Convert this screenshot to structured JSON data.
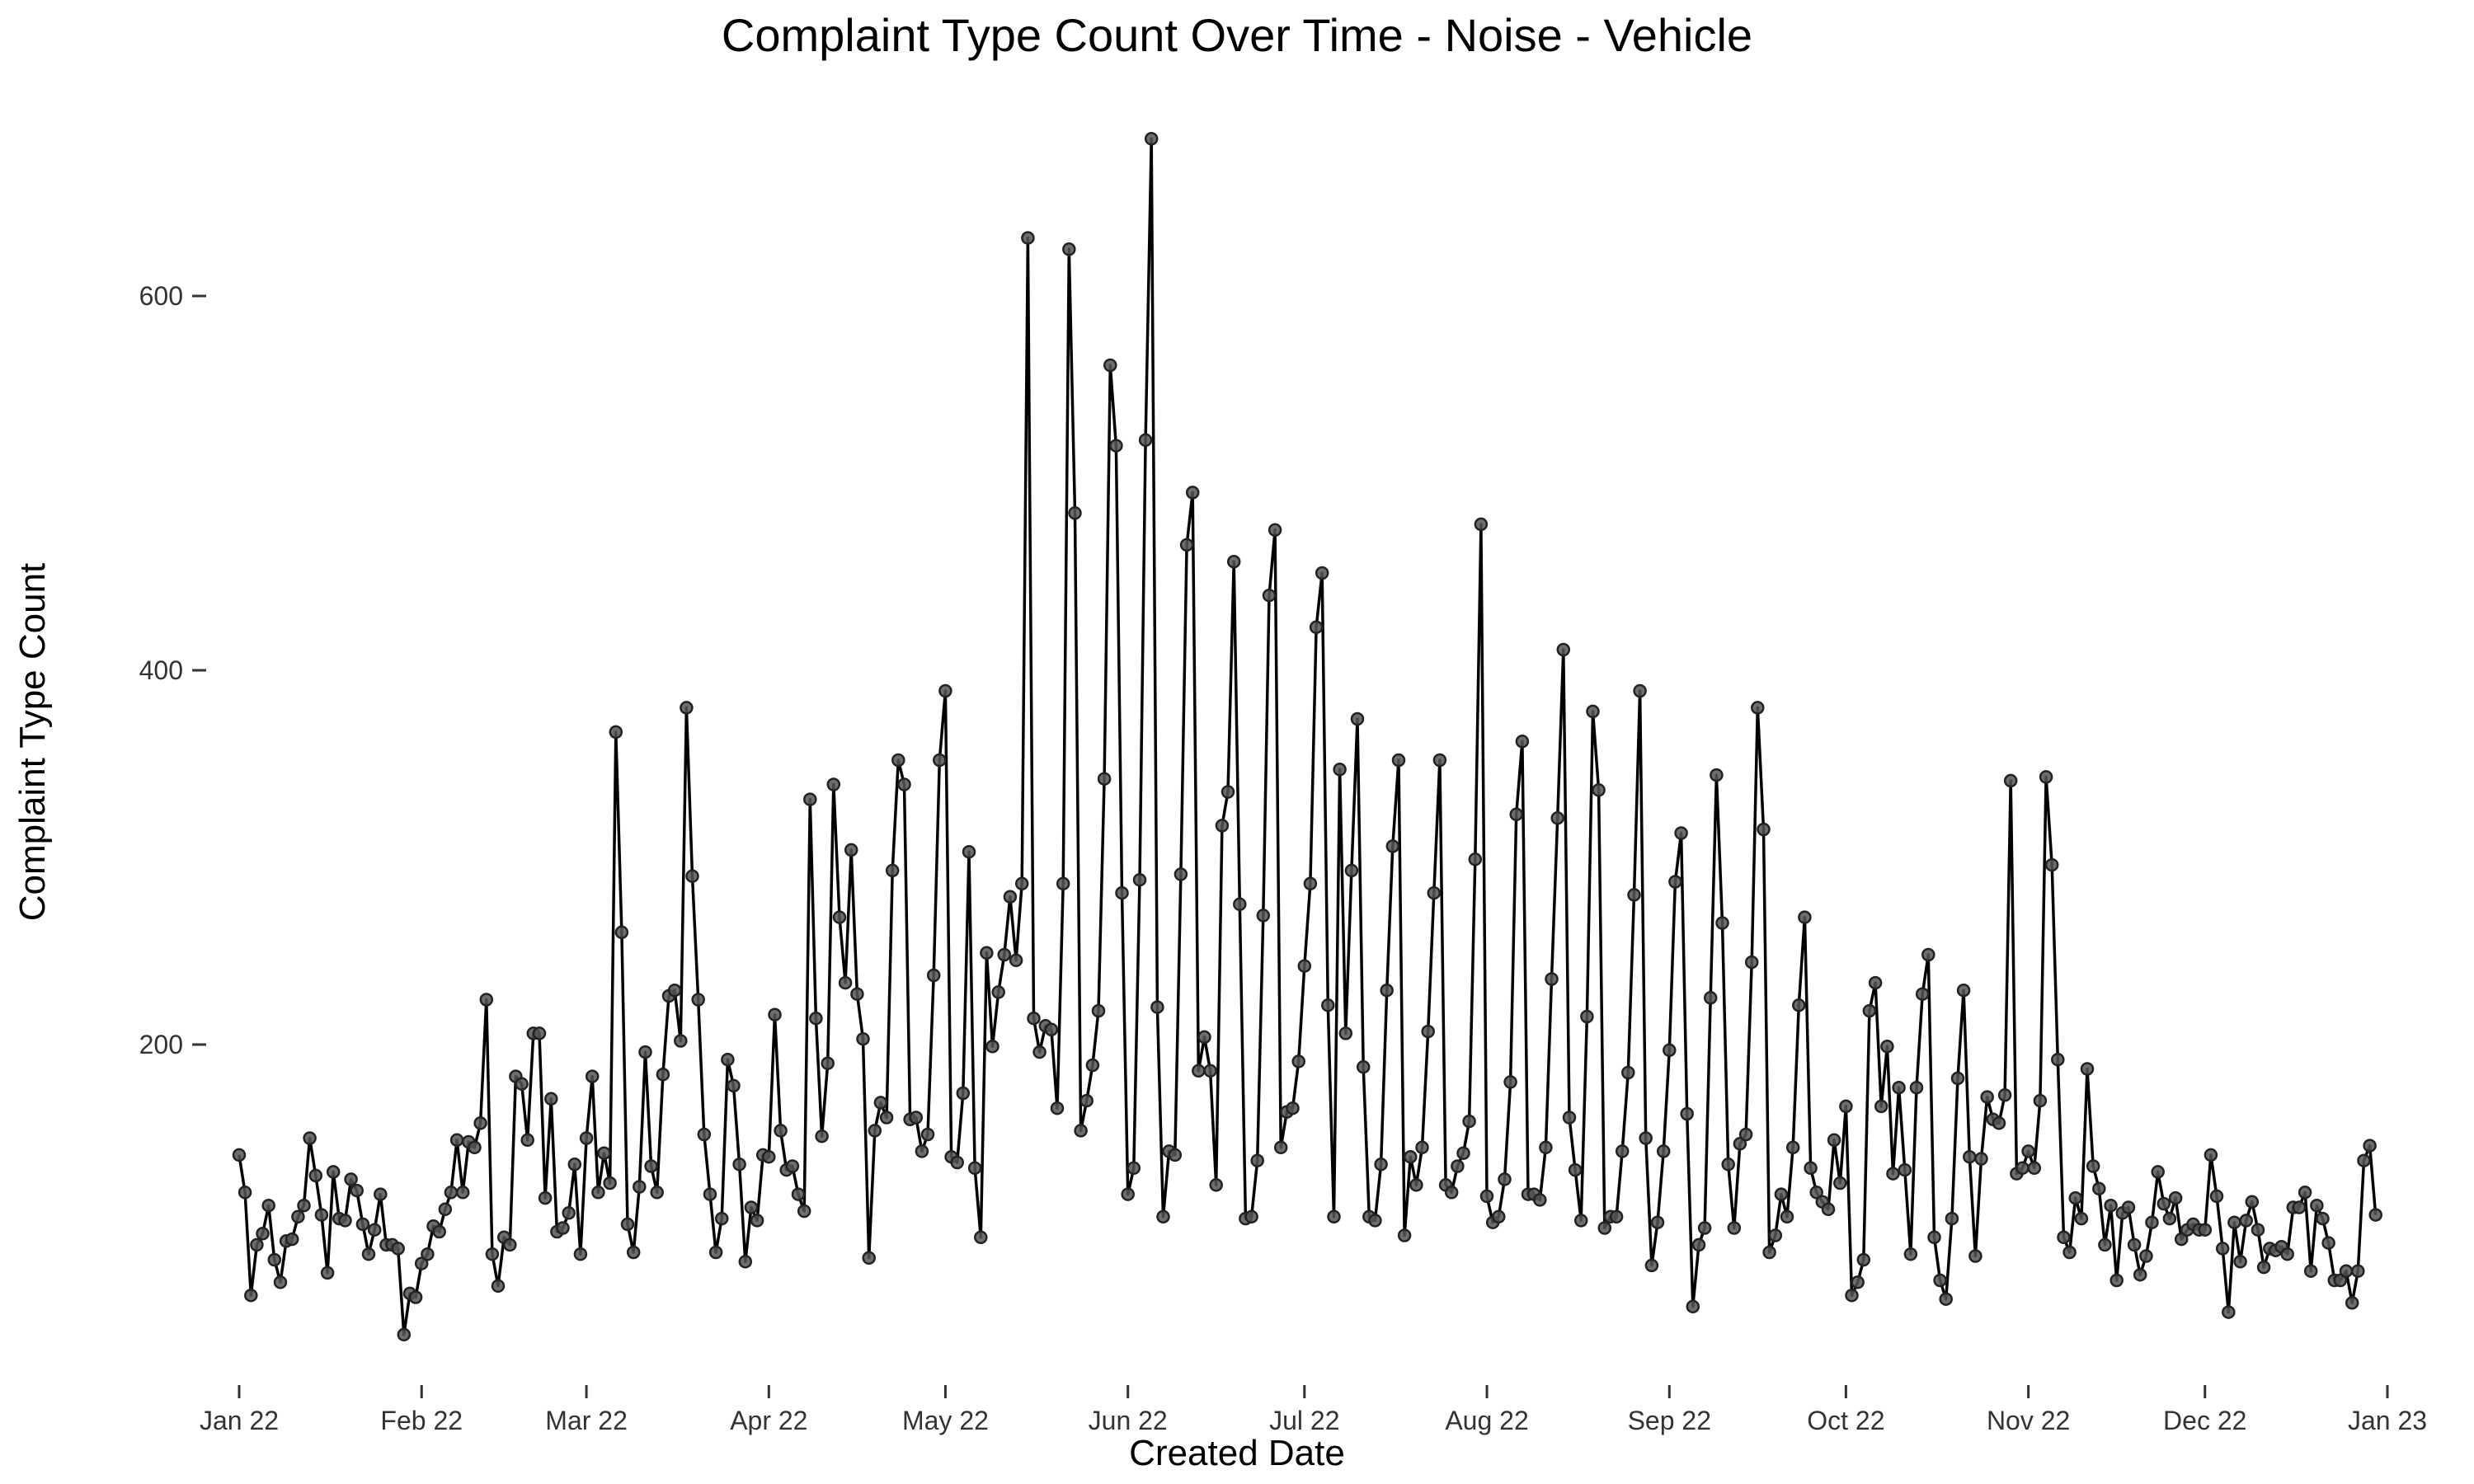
{
  "chart_data": {
    "type": "line",
    "title": "Complaint Type Count Over Time - Noise - Vehicle",
    "xlabel": "Created Date",
    "ylabel": "Complaint Type Count",
    "x_start": "2022-01-01",
    "x_frequency": "daily",
    "x_ticks": [
      "Jan 22",
      "Feb 22",
      "Mar 22",
      "Apr 22",
      "May 22",
      "Jun 22",
      "Jul 22",
      "Aug 22",
      "Sep 22",
      "Oct 22",
      "Nov 22",
      "Dec 22",
      "Jan 23"
    ],
    "y_ticks": [
      200,
      400,
      600
    ],
    "ylim": [
      30,
      700
    ],
    "grid": false,
    "markers": true,
    "line_color": "#000000",
    "marker_color": "#555555",
    "series": [
      {
        "values": [
          141,
          121,
          66,
          93,
          99,
          114,
          85,
          73,
          95,
          96,
          108,
          114,
          150,
          130,
          109,
          78,
          132,
          107,
          106,
          128,
          122,
          104,
          88,
          101,
          120,
          93,
          93,
          91,
          45,
          67,
          65,
          83,
          88,
          103,
          100,
          112,
          121,
          149,
          121,
          148,
          145,
          158,
          224,
          88,
          71,
          97,
          93,
          183,
          179,
          149,
          206,
          206,
          118,
          171,
          100,
          102,
          110,
          136,
          88,
          150,
          183,
          121,
          142,
          126,
          367,
          260,
          104,
          89,
          124,
          196,
          135,
          121,
          184,
          226,
          229,
          202,
          380,
          290,
          224,
          152,
          120,
          89,
          107,
          192,
          178,
          136,
          84,
          113,
          106,
          141,
          140,
          216,
          154,
          133,
          135,
          120,
          111,
          331,
          214,
          151,
          190,
          339,
          268,
          233,
          304,
          227,
          203,
          86,
          154,
          169,
          161,
          293,
          352,
          339,
          160,
          161,
          143,
          152,
          237,
          352,
          389,
          140,
          137,
          174,
          303,
          134,
          97,
          249,
          199,
          228,
          248,
          279,
          245,
          286,
          631,
          214,
          196,
          210,
          208,
          166,
          286,
          625,
          484,
          154,
          170,
          189,
          218,
          342,
          563,
          520,
          281,
          120,
          134,
          288,
          523,
          684,
          220,
          108,
          143,
          141,
          291,
          467,
          495,
          186,
          204,
          186,
          125,
          317,
          335,
          458,
          275,
          107,
          108,
          138,
          269,
          440,
          475,
          145,
          164,
          166,
          191,
          242,
          286,
          423,
          452,
          221,
          108,
          347,
          206,
          293,
          374,
          188,
          108,
          106,
          136,
          229,
          306,
          352,
          98,
          140,
          125,
          145,
          207,
          281,
          352,
          125,
          121,
          135,
          142,
          159,
          299,
          478,
          119,
          105,
          108,
          128,
          180,
          323,
          362,
          120,
          120,
          117,
          145,
          235,
          321,
          411,
          161,
          133,
          106,
          215,
          378,
          336,
          102,
          108,
          108,
          143,
          185,
          280,
          389,
          150,
          82,
          105,
          143,
          197,
          287,
          313,
          163,
          60,
          93,
          102,
          225,
          344,
          265,
          136,
          102,
          147,
          152,
          244,
          380,
          315,
          89,
          98,
          120,
          108,
          145,
          221,
          268,
          134,
          121,
          116,
          112,
          149,
          126,
          167,
          66,
          73,
          85,
          218,
          233,
          167,
          199,
          131,
          177,
          133,
          88,
          177,
          227,
          248,
          97,
          74,
          64,
          107,
          182,
          229,
          140,
          87,
          139,
          172,
          160,
          158,
          173,
          341,
          131,
          134,
          143,
          134,
          170,
          343,
          296,
          192,
          97,
          89,
          118,
          107,
          187,
          135,
          123,
          93,
          114,
          74,
          110,
          113,
          93,
          77,
          87,
          105,
          132,
          115,
          107,
          118,
          96,
          101,
          104,
          101,
          101,
          141,
          119,
          91,
          57,
          105,
          84,
          106,
          116,
          101,
          81,
          91,
          90,
          92,
          88,
          113,
          113,
          121,
          79,
          114,
          107,
          94,
          74,
          74,
          79,
          62,
          79,
          138,
          146,
          109
        ]
      }
    ]
  }
}
